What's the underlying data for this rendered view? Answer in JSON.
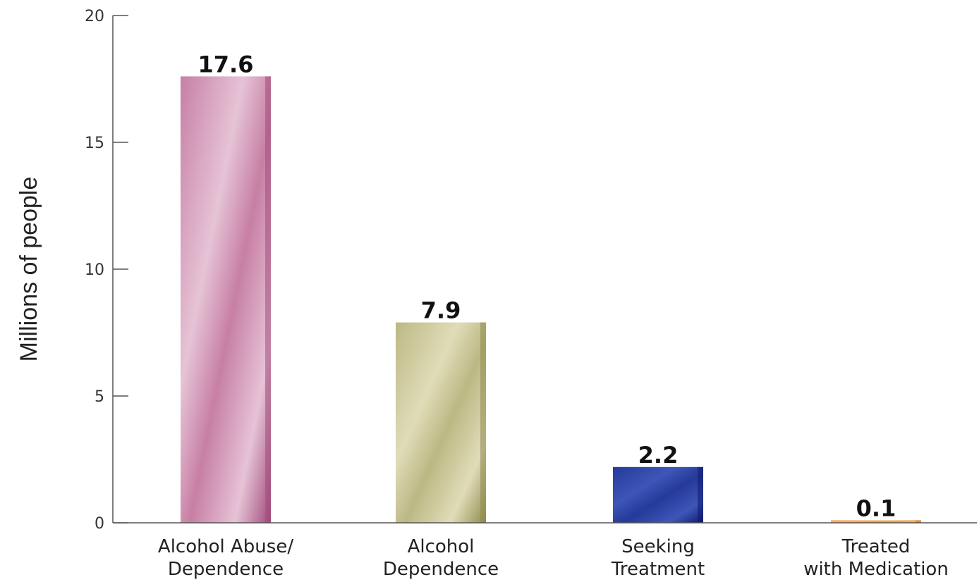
{
  "chart_data": {
    "type": "bar",
    "title": "",
    "xlabel": "",
    "ylabel": "Millions of people",
    "ylim": [
      0,
      20
    ],
    "yticks": [
      0,
      5,
      10,
      15,
      20
    ],
    "categories": [
      [
        "Alcohol Abuse/",
        "Dependence"
      ],
      [
        "Alcohol",
        "Dependence"
      ],
      [
        "Seeking",
        "Treatment"
      ],
      [
        "Treated",
        "with Medication"
      ]
    ],
    "values": [
      17.6,
      7.9,
      2.2,
      0.1
    ],
    "data_labels": [
      "17.6",
      "7.9",
      "2.2",
      "0.1"
    ],
    "bar_colors": [
      {
        "dark": "#a04a7a",
        "mid": "#c77fa4",
        "light": "#e6c3d6"
      },
      {
        "dark": "#8e8a4e",
        "mid": "#bcb884",
        "light": "#e0dcb8"
      },
      {
        "dark": "#101a6e",
        "mid": "#253a9a",
        "light": "#3e56b8"
      },
      {
        "dark": "#d9741e",
        "mid": "#f0953c",
        "light": "#f7b878"
      }
    ],
    "grid": false,
    "legend": "none"
  }
}
